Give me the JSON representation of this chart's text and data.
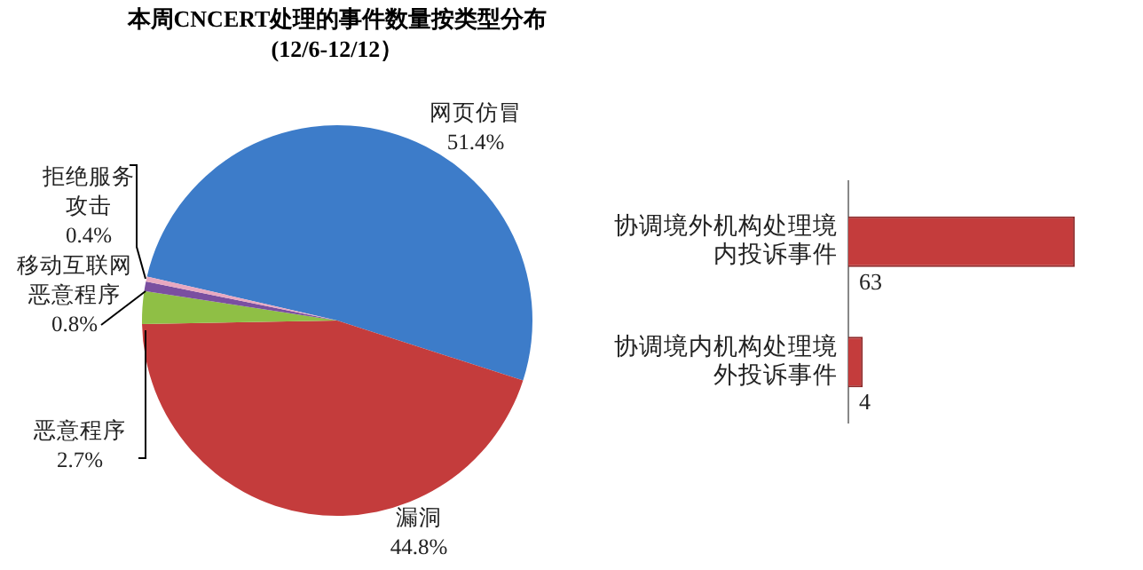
{
  "chart_data": [
    {
      "type": "pie",
      "title": "本周CNCERT处理的事件数量按类型分布",
      "subtitle": "(12/6-12/12）",
      "categories": [
        "网页仿冒",
        "漏洞",
        "恶意程序",
        "移动互联网恶意程序",
        "拒绝服务攻击"
      ],
      "values": [
        51.4,
        44.8,
        2.7,
        0.8,
        0.4
      ],
      "colors": [
        "#3d7cc9",
        "#c43c3c",
        "#8fbf45",
        "#7a4fa0",
        "#e8a8c0"
      ],
      "value_labels": [
        "51.4%",
        "44.8%",
        "2.7%",
        "0.8%",
        "0.4%"
      ],
      "legend": false
    },
    {
      "type": "bar",
      "orientation": "horizontal",
      "categories": [
        "协调境外机构处理境内投诉事件",
        "协调境内机构处理境外投诉事件"
      ],
      "values": [
        63,
        4
      ],
      "color": "#c43c3c",
      "data_labels": true,
      "tick_labels": "y",
      "legend": false
    }
  ]
}
